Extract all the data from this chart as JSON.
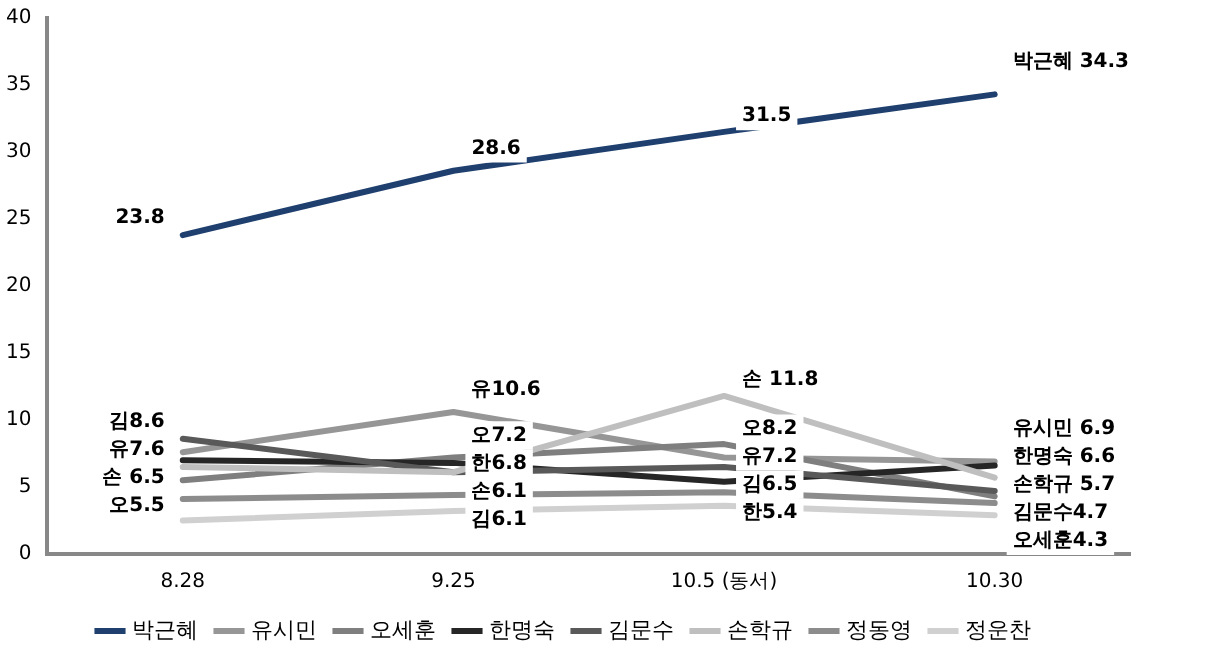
{
  "chart_data": {
    "type": "line",
    "categories": [
      "8.28",
      "9.25",
      "10.5 (동서)",
      "10.30"
    ],
    "ylim": [
      0,
      40
    ],
    "yticks": [
      0,
      5,
      10,
      15,
      20,
      25,
      30,
      35,
      40
    ],
    "grid": false,
    "legend": "bottom",
    "marker": "none",
    "series": [
      {
        "name": "박근혜",
        "color": "#1f3f6e",
        "values": [
          23.8,
          28.6,
          31.5,
          34.3
        ],
        "value_labels": [
          "23.8",
          "28.6",
          "31.5",
          "박근혜 34.3"
        ]
      },
      {
        "name": "유시민",
        "color": "#969696",
        "values": [
          7.6,
          10.6,
          7.2,
          6.9
        ],
        "value_labels": [
          "유7.6",
          "유10.6",
          "유7.2",
          "유시민 6.9"
        ]
      },
      {
        "name": "오세훈",
        "color": "#7f7f7f",
        "values": [
          5.5,
          7.2,
          8.2,
          4.3
        ],
        "value_labels": [
          "오5.5",
          "오7.2",
          "오8.2",
          "오세훈4.3"
        ]
      },
      {
        "name": "한명숙",
        "color": "#262626",
        "values": [
          7.0,
          6.8,
          5.4,
          6.6
        ],
        "value_labels": [
          null,
          "한6.8",
          "한5.4",
          "한명숙 6.6"
        ]
      },
      {
        "name": "김문수",
        "color": "#595959",
        "values": [
          8.6,
          6.1,
          6.5,
          4.7
        ],
        "value_labels": [
          "김8.6",
          "김6.1",
          "김6.5",
          "김문수4.7"
        ]
      },
      {
        "name": "손학규",
        "color": "#bfbfbf",
        "values": [
          6.5,
          6.1,
          11.8,
          5.7
        ],
        "value_labels": [
          "손 6.5",
          "손6.1",
          "손 11.8",
          "손학규 5.7"
        ]
      },
      {
        "name": "정동영",
        "color": "#8c8c8c",
        "values": [
          4.1,
          4.4,
          4.6,
          3.8
        ]
      },
      {
        "name": "정운찬",
        "color": "#d0d0d0",
        "values": [
          2.5,
          3.2,
          3.6,
          2.9
        ]
      }
    ]
  }
}
